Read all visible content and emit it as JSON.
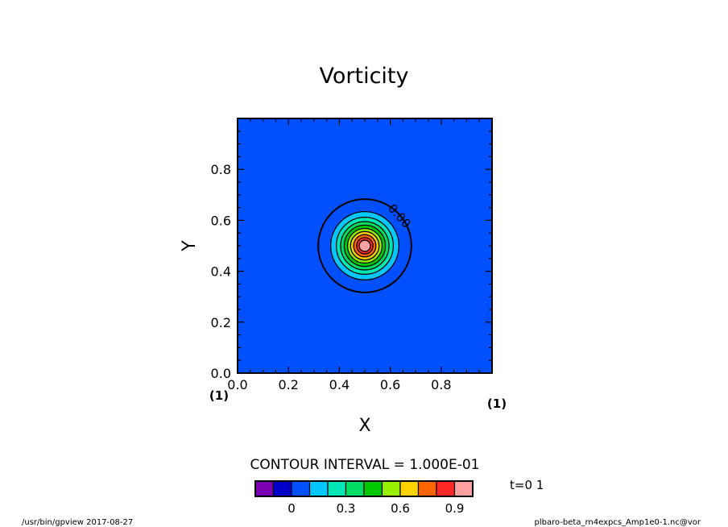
{
  "chart_data": {
    "type": "contour",
    "title": "Vorticity",
    "xlabel": "X",
    "ylabel": "Y",
    "xlim": [
      0,
      1
    ],
    "ylim": [
      0,
      1
    ],
    "x_ticks": [
      "0.0",
      "0.2",
      "0.4",
      "0.6",
      "0.8"
    ],
    "y_ticks": [
      "0.0",
      "0.2",
      "0.4",
      "0.6",
      "0.8"
    ],
    "x_ticks_values": [
      0,
      0.2,
      0.4,
      0.6,
      0.8
    ],
    "y_ticks_values": [
      0,
      0.2,
      0.4,
      0.6,
      0.8
    ],
    "x_index_label": "(1)",
    "y_index_label": "(1)",
    "vortex_center": [
      0.5,
      0.5
    ],
    "contour_interval_text": "CONTOUR INTERVAL = 1.000E-01",
    "contour_levels": [
      0.0,
      0.1,
      0.2,
      0.3,
      0.4,
      0.5,
      0.6,
      0.7,
      0.8,
      0.9
    ],
    "contour_radii": [
      0.183,
      0.134,
      0.112,
      0.095,
      0.081,
      0.068,
      0.056,
      0.044,
      0.032,
      0.022
    ],
    "contour_label": "0.00",
    "colorbar": {
      "colors": [
        "#7a00b4",
        "#0000c8",
        "#0050ff",
        "#00c8ff",
        "#00e6b4",
        "#00dc64",
        "#00c800",
        "#96f000",
        "#ffd200",
        "#ff6400",
        "#ff2828",
        "#ffa0a0"
      ],
      "tick_labels": [
        "0",
        "0.3",
        "0.6",
        "0.9"
      ],
      "tick_positions": [
        2,
        5,
        8,
        11
      ]
    },
    "field_colors": [
      "#0050ff",
      "#0050ff",
      "#00c8ff",
      "#00e6b4",
      "#00dc64",
      "#00c800",
      "#96f000",
      "#ffd200",
      "#ff6400",
      "#ff2828",
      "#ffa0a0"
    ],
    "time_label": "t=0 1",
    "footer_left": "/usr/bin/gpview  2017-08-27",
    "footer_right": "plbaro-beta_rn4expcs_Amp1e0-1.nc@vor"
  }
}
